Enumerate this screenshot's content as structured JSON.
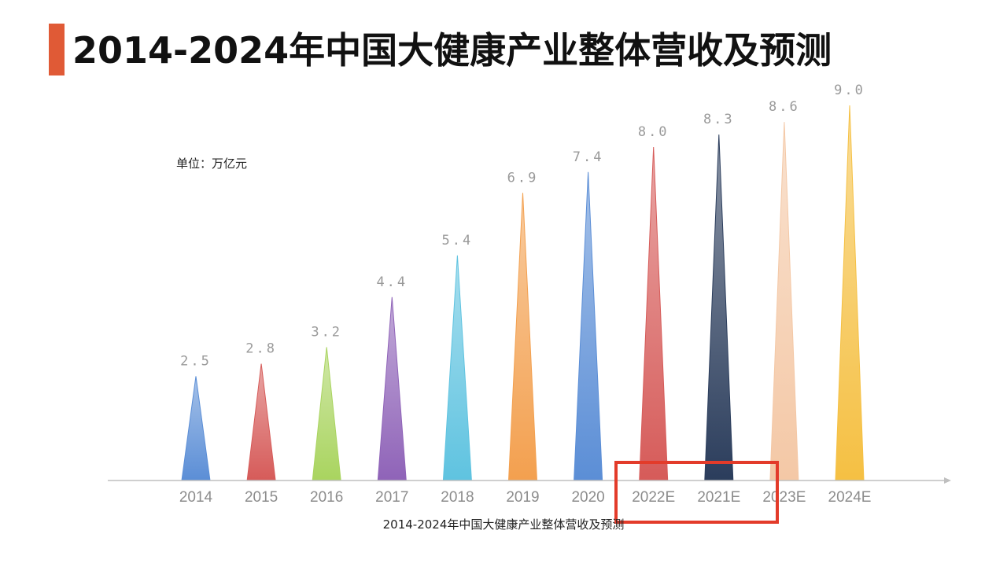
{
  "title": "2014-2024年中国大健康产业整体营收及预测",
  "unit_label": "单位：万亿元",
  "caption": "2014-2024年中国大健康产业整体营收及预测",
  "accent_color": "#e05a36",
  "highlight_color": "#e33b2a",
  "chart_data": {
    "type": "bar",
    "categories": [
      "2014",
      "2015",
      "2016",
      "2017",
      "2018",
      "2019",
      "2020",
      "2022E",
      "2021E",
      "2023E",
      "2024E"
    ],
    "values": [
      2.5,
      2.8,
      3.2,
      4.4,
      5.4,
      6.9,
      7.4,
      8.0,
      8.3,
      8.6,
      9.0
    ],
    "value_labels": [
      "2.5",
      "2.8",
      "3.2",
      "4.4",
      "5.4",
      "6.9",
      "7.4",
      "8.0",
      "8.3",
      "8.6",
      "9.0"
    ],
    "colors": [
      "#5b8ed6",
      "#d65b59",
      "#a9d45f",
      "#8f63b8",
      "#5fc3e0",
      "#f3a04f",
      "#5b8ed6",
      "#d65b59",
      "#2b3d5c",
      "#f4c8a6",
      "#f5c043"
    ],
    "ylim": [
      0,
      9
    ],
    "highlighted_categories": [
      "2022E",
      "2021E"
    ]
  }
}
